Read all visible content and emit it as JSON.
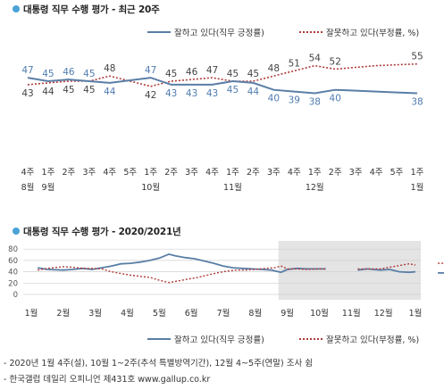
{
  "chart_data": [
    {
      "type": "line",
      "title": "대통령 직무 수행 평가 - 최근 20주",
      "categories": [
        [
          "4주",
          "8월"
        ],
        [
          "1주",
          "9월"
        ],
        [
          "2주",
          ""
        ],
        [
          "3주",
          ""
        ],
        [
          "4주",
          ""
        ],
        [
          "5주",
          ""
        ],
        [
          "1주",
          "10월"
        ],
        [
          "2주",
          ""
        ],
        [
          "3주",
          ""
        ],
        [
          "4주",
          ""
        ],
        [
          "1주",
          "11월"
        ],
        [
          "2주",
          ""
        ],
        [
          "3주",
          ""
        ],
        [
          "4주",
          ""
        ],
        [
          "1주",
          "12월"
        ],
        [
          "2주",
          ""
        ],
        [
          "3주",
          ""
        ],
        [
          "4주",
          ""
        ],
        [
          "5주",
          ""
        ],
        [
          "1주",
          "1월"
        ]
      ],
      "series": [
        {
          "name": "잘하고 있다(직무 긍정률)",
          "color": "#5a7ea6",
          "style": "solid",
          "values": [
            47,
            45,
            46,
            45,
            44,
            null,
            47,
            43,
            43,
            43,
            45,
            44,
            40,
            39,
            38,
            40,
            null,
            null,
            null,
            38
          ],
          "label_pos": [
            "above",
            "above",
            "above",
            "above",
            "below",
            null,
            "above",
            "below",
            "below",
            "below",
            "below",
            "below",
            "below",
            "below",
            "below",
            "below",
            null,
            null,
            null,
            "below"
          ]
        },
        {
          "name": "잘못하고 있다(부정률, %)",
          "color": "#b03a3a",
          "style": "dotted",
          "values": [
            43,
            44,
            45,
            45,
            48,
            null,
            42,
            45,
            46,
            47,
            45,
            45,
            48,
            51,
            54,
            52,
            null,
            null,
            null,
            55
          ],
          "label_pos": [
            "below",
            "below",
            "below",
            "below",
            "above",
            null,
            "below",
            "above",
            "above",
            "above",
            "above",
            "above",
            "above",
            "above",
            "above",
            "above",
            null,
            null,
            null,
            "above"
          ]
        }
      ],
      "line_values": {
        "positive": [
          47,
          45,
          46,
          45,
          44,
          45.5,
          47,
          43,
          43,
          43,
          45,
          44,
          40,
          39,
          38,
          40,
          39.5,
          39,
          38.5,
          38
        ],
        "negative": [
          43,
          44,
          45,
          45,
          48,
          45,
          42,
          45,
          46,
          47,
          45,
          45,
          48,
          51,
          54,
          52,
          53,
          54,
          54.5,
          55
        ]
      },
      "ylim": [
        30,
        60
      ]
    },
    {
      "type": "line",
      "title": "대통령 직무 수행 평가 - 2020/2021년",
      "months": [
        "1월",
        "2월",
        "3월",
        "4월",
        "5월",
        "6월",
        "7월",
        "8월",
        "9월",
        "10월",
        "11월",
        "12월",
        "1월"
      ],
      "yticks": [
        0,
        20,
        40,
        60,
        80
      ],
      "ylim": [
        0,
        85
      ],
      "shaded_from_month_index": 8,
      "series": [
        {
          "name": "잘하고 있다(직무 긍정률)",
          "color": "#5a7ea6",
          "style": "solid",
          "segments": [
            [
              [
                0.2,
                47
              ],
              [
                0.5,
                44
              ],
              [
                1.0,
                43
              ],
              [
                1.3,
                44
              ],
              [
                1.6,
                46
              ],
              [
                1.9,
                44
              ],
              [
                2.2,
                47
              ],
              [
                2.5,
                50
              ],
              [
                2.8,
                54
              ],
              [
                3.1,
                55
              ],
              [
                3.4,
                57
              ],
              [
                3.7,
                60
              ],
              [
                4.0,
                64
              ],
              [
                4.3,
                71
              ],
              [
                4.5,
                68
              ],
              [
                4.8,
                65
              ],
              [
                5.1,
                63
              ],
              [
                5.4,
                59
              ],
              [
                5.7,
                55
              ],
              [
                6.0,
                50
              ],
              [
                6.3,
                47
              ],
              [
                6.6,
                46
              ],
              [
                6.9,
                45
              ],
              [
                7.2,
                44
              ],
              [
                7.5,
                43
              ],
              [
                7.8,
                39
              ],
              [
                8.0,
                44
              ],
              [
                8.3,
                46
              ],
              [
                8.6,
                45
              ],
              [
                9.0,
                45
              ],
              [
                9.2,
                45
              ]
            ],
            [
              [
                10.2,
                43
              ],
              [
                10.5,
                45
              ],
              [
                10.9,
                43
              ],
              [
                11.2,
                44
              ],
              [
                11.5,
                40
              ],
              [
                11.8,
                39
              ],
              [
                12.0,
                40
              ]
            ],
            [
              [
                12.7,
                38
              ],
              [
                13.0,
                38
              ]
            ]
          ]
        },
        {
          "name": "잘못하고 있다(부정률, %)",
          "color": "#b03a3a",
          "style": "dotted",
          "segments": [
            [
              [
                0.2,
                43
              ],
              [
                0.5,
                46
              ],
              [
                1.0,
                49
              ],
              [
                1.3,
                48
              ],
              [
                1.6,
                46
              ],
              [
                1.9,
                46
              ],
              [
                2.2,
                45
              ],
              [
                2.5,
                40
              ],
              [
                2.8,
                37
              ],
              [
                3.1,
                34
              ],
              [
                3.4,
                32
              ],
              [
                3.7,
                30
              ],
              [
                4.0,
                25
              ],
              [
                4.3,
                21
              ],
              [
                4.6,
                24
              ],
              [
                4.9,
                27
              ],
              [
                5.2,
                30
              ],
              [
                5.5,
                34
              ],
              [
                5.8,
                38
              ],
              [
                6.1,
                41
              ],
              [
                6.4,
                43
              ],
              [
                6.7,
                43
              ],
              [
                7.0,
                44
              ],
              [
                7.3,
                46
              ],
              [
                7.6,
                47
              ],
              [
                7.8,
                50
              ],
              [
                8.0,
                45
              ],
              [
                8.3,
                45
              ],
              [
                8.6,
                44
              ],
              [
                9.0,
                45
              ],
              [
                9.2,
                45
              ]
            ],
            [
              [
                10.2,
                45
              ],
              [
                10.5,
                45
              ],
              [
                10.9,
                45
              ],
              [
                11.2,
                48
              ],
              [
                11.5,
                51
              ],
              [
                11.8,
                54
              ],
              [
                12.0,
                52
              ]
            ],
            [
              [
                12.7,
                55
              ],
              [
                13.0,
                55
              ]
            ]
          ]
        }
      ]
    }
  ],
  "legend": {
    "positive_label": "잘하고 있다(직무 긍정률)",
    "negative_label": "잘못하고 있다(부정률, %)"
  },
  "footnotes": [
    "- 2020년 1월 4주(설), 10월 1~2주(추석 특별방역기간), 12월 4~5주(연말) 조사 쉼",
    "- 한국갤럽 데일리 오피니언 제431호 www.gallup.co.kr"
  ]
}
